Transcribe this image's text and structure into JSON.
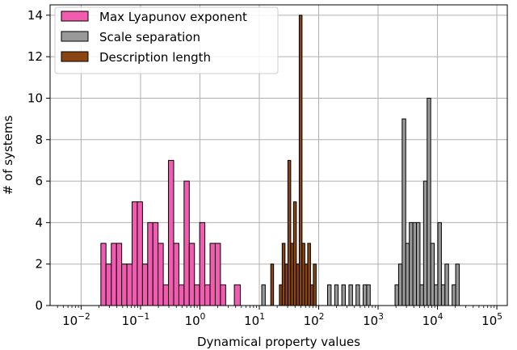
{
  "chart_data": {
    "type": "bar",
    "xscale": "log",
    "xlim": [
      0.003,
      150000
    ],
    "ylim": [
      0,
      14.5
    ],
    "xlabel": "Dynamical property values",
    "ylabel": "# of systems",
    "xticks": [
      0.01,
      0.1,
      1,
      10,
      100,
      1000,
      10000,
      100000
    ],
    "xtick_labels": [
      {
        "base": "10",
        "exp": "−2"
      },
      {
        "base": "10",
        "exp": "−1"
      },
      {
        "base": "10",
        "exp": "0"
      },
      {
        "base": "10",
        "exp": "1"
      },
      {
        "base": "10",
        "exp": "2"
      },
      {
        "base": "10",
        "exp": "3"
      },
      {
        "base": "10",
        "exp": "4"
      },
      {
        "base": "10",
        "exp": "5"
      }
    ],
    "yticks": [
      0,
      2,
      4,
      6,
      8,
      10,
      12,
      14
    ],
    "ytick_labels": [
      "0",
      "2",
      "4",
      "6",
      "8",
      "10",
      "12",
      "14"
    ],
    "grid": true,
    "legend_position": "top-left",
    "series": [
      {
        "name": "Max Lyapunov exponent",
        "color": "#f25cb0",
        "bins": [
          {
            "x0": 0.0215,
            "x1": 0.0262,
            "count": 3
          },
          {
            "x0": 0.0262,
            "x1": 0.0322,
            "count": 2
          },
          {
            "x0": 0.0322,
            "x1": 0.0394,
            "count": 3
          },
          {
            "x0": 0.0394,
            "x1": 0.0482,
            "count": 3
          },
          {
            "x0": 0.0482,
            "x1": 0.0589,
            "count": 2
          },
          {
            "x0": 0.0589,
            "x1": 0.0721,
            "count": 2
          },
          {
            "x0": 0.0721,
            "x1": 0.0882,
            "count": 5
          },
          {
            "x0": 0.0882,
            "x1": 0.1079,
            "count": 5
          },
          {
            "x0": 0.1079,
            "x1": 0.132,
            "count": 2
          },
          {
            "x0": 0.132,
            "x1": 0.1614,
            "count": 4
          },
          {
            "x0": 0.1614,
            "x1": 0.1975,
            "count": 4
          },
          {
            "x0": 0.1975,
            "x1": 0.2416,
            "count": 3
          },
          {
            "x0": 0.2416,
            "x1": 0.2955,
            "count": 1
          },
          {
            "x0": 0.2955,
            "x1": 0.3615,
            "count": 7
          },
          {
            "x0": 0.3615,
            "x1": 0.4422,
            "count": 3
          },
          {
            "x0": 0.4422,
            "x1": 0.541,
            "count": 1
          },
          {
            "x0": 0.541,
            "x1": 0.6617,
            "count": 6
          },
          {
            "x0": 0.6617,
            "x1": 0.8095,
            "count": 3
          },
          {
            "x0": 0.8095,
            "x1": 0.9902,
            "count": 1
          },
          {
            "x0": 0.9902,
            "x1": 1.2113,
            "count": 4
          },
          {
            "x0": 1.2113,
            "x1": 1.4818,
            "count": 1
          },
          {
            "x0": 1.4818,
            "x1": 1.8126,
            "count": 3
          },
          {
            "x0": 1.8126,
            "x1": 2.2173,
            "count": 3
          },
          {
            "x0": 2.2173,
            "x1": 2.7123,
            "count": 1
          },
          {
            "x0": 3.8,
            "x1": 4.8,
            "count": 1
          }
        ]
      },
      {
        "name": "Scale separation",
        "color": "#999999",
        "bins": [
          {
            "x0": 11.0,
            "x1": 12.6,
            "count": 1
          },
          {
            "x0": 141,
            "x1": 162,
            "count": 1
          },
          {
            "x0": 186,
            "x1": 213,
            "count": 1
          },
          {
            "x0": 245,
            "x1": 281,
            "count": 1
          },
          {
            "x0": 323,
            "x1": 371,
            "count": 1
          },
          {
            "x0": 425,
            "x1": 488,
            "count": 1
          },
          {
            "x0": 560,
            "x1": 643,
            "count": 1
          },
          {
            "x0": 643,
            "x1": 738,
            "count": 1
          },
          {
            "x0": 1930,
            "x1": 2216,
            "count": 1
          },
          {
            "x0": 2216,
            "x1": 2545,
            "count": 2
          },
          {
            "x0": 2545,
            "x1": 2923,
            "count": 9
          },
          {
            "x0": 2923,
            "x1": 3356,
            "count": 3
          },
          {
            "x0": 3356,
            "x1": 3854,
            "count": 4
          },
          {
            "x0": 3854,
            "x1": 4426,
            "count": 4
          },
          {
            "x0": 4426,
            "x1": 5082,
            "count": 4
          },
          {
            "x0": 5082,
            "x1": 5836,
            "count": 1
          },
          {
            "x0": 5836,
            "x1": 6702,
            "count": 6
          },
          {
            "x0": 6702,
            "x1": 7696,
            "count": 10
          },
          {
            "x0": 7696,
            "x1": 8838,
            "count": 3
          },
          {
            "x0": 8838,
            "x1": 10149,
            "count": 1
          },
          {
            "x0": 10149,
            "x1": 11654,
            "count": 4
          },
          {
            "x0": 11654,
            "x1": 13383,
            "count": 1
          },
          {
            "x0": 13383,
            "x1": 15368,
            "count": 2
          },
          {
            "x0": 17648,
            "x1": 20266,
            "count": 1
          },
          {
            "x0": 20266,
            "x1": 23273,
            "count": 2
          }
        ]
      },
      {
        "name": "Description length",
        "color": "#8b4513",
        "bins": [
          {
            "x0": 15.6,
            "x1": 17.4,
            "count": 2
          },
          {
            "x0": 21.8,
            "x1": 24.3,
            "count": 1
          },
          {
            "x0": 24.3,
            "x1": 27.1,
            "count": 3
          },
          {
            "x0": 27.1,
            "x1": 30.3,
            "count": 2
          },
          {
            "x0": 30.3,
            "x1": 33.8,
            "count": 7
          },
          {
            "x0": 33.8,
            "x1": 37.7,
            "count": 3
          },
          {
            "x0": 37.7,
            "x1": 42.1,
            "count": 5
          },
          {
            "x0": 42.1,
            "x1": 47.0,
            "count": 2
          },
          {
            "x0": 47.0,
            "x1": 52.4,
            "count": 14
          },
          {
            "x0": 52.4,
            "x1": 58.5,
            "count": 3
          },
          {
            "x0": 58.5,
            "x1": 65.3,
            "count": 2
          },
          {
            "x0": 65.3,
            "x1": 72.9,
            "count": 3
          },
          {
            "x0": 72.9,
            "x1": 81.3,
            "count": 1
          },
          {
            "x0": 81.3,
            "x1": 90.7,
            "count": 2
          }
        ]
      }
    ]
  }
}
